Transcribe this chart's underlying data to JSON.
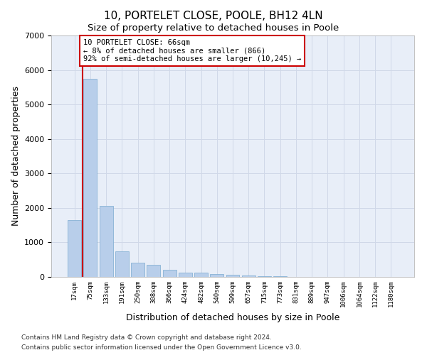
{
  "title1": "10, PORTELET CLOSE, POOLE, BH12 4LN",
  "title2": "Size of property relative to detached houses in Poole",
  "xlabel": "Distribution of detached houses by size in Poole",
  "ylabel": "Number of detached properties",
  "categories": [
    "17sqm",
    "75sqm",
    "133sqm",
    "191sqm",
    "250sqm",
    "308sqm",
    "366sqm",
    "424sqm",
    "482sqm",
    "540sqm",
    "599sqm",
    "657sqm",
    "715sqm",
    "773sqm",
    "831sqm",
    "889sqm",
    "947sqm",
    "1006sqm",
    "1064sqm",
    "1122sqm",
    "1180sqm"
  ],
  "values": [
    1650,
    5750,
    2050,
    750,
    420,
    350,
    200,
    130,
    120,
    90,
    60,
    45,
    30,
    15,
    10,
    8,
    5,
    4,
    3,
    2,
    1
  ],
  "bar_color": "#b8ceea",
  "bar_edge_color": "#7aaad0",
  "annotation_line1": "10 PORTELET CLOSE: 66sqm",
  "annotation_line2": "← 8% of detached houses are smaller (866)",
  "annotation_line3": "92% of semi-detached houses are larger (10,245) →",
  "annotation_box_color": "#ffffff",
  "annotation_box_edge": "#cc0000",
  "ylim": [
    0,
    7000
  ],
  "yticks": [
    0,
    1000,
    2000,
    3000,
    4000,
    5000,
    6000,
    7000
  ],
  "grid_color": "#d0d8e8",
  "bg_color": "#e8eef8",
  "footnote1": "Contains HM Land Registry data © Crown copyright and database right 2024.",
  "footnote2": "Contains public sector information licensed under the Open Government Licence v3.0.",
  "red_line_color": "#cc0000",
  "title_fontsize": 11,
  "subtitle_fontsize": 9.5
}
